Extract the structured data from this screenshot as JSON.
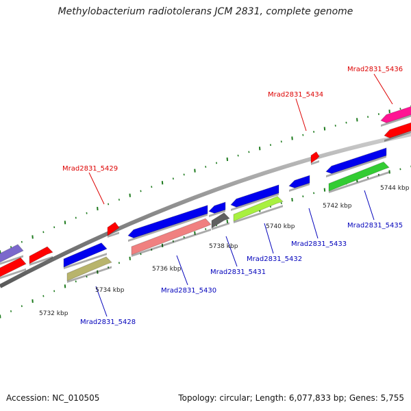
{
  "title": "Methylobacterium radiotolerans JCM 2831, complete genome",
  "footer": {
    "accession": "Accession: NC_010505",
    "topology": "Topology: circular; Length: 6,077,833 bp; Genes: 5,755"
  },
  "colors": {
    "backbone": "#8c8c8c",
    "tick": "#1e7b1e",
    "label_top": "#dd0000",
    "label_bottom": "#0000bb"
  },
  "scale_ticks": [
    "5732 kbp",
    "5734 kbp",
    "5736 kbp",
    "5738 kbp",
    "5740 kbp",
    "5742 kbp",
    "5744 kbp"
  ],
  "genes": [
    {
      "name": "",
      "color": "#7b68cc"
    },
    {
      "name": "",
      "color": "#ff0000"
    },
    {
      "name": "",
      "color": "#ff0000"
    },
    {
      "name": "Mrad2831_5428",
      "color": "#0000ee"
    },
    {
      "name": "Mrad2831_5428",
      "color": "#b8b46c"
    },
    {
      "name": "Mrad2831_5429",
      "color": "#ff0000"
    },
    {
      "name": "Mrad2831_5430",
      "color": "#0000ee"
    },
    {
      "name": "Mrad2831_5430",
      "color": "#f08080"
    },
    {
      "name": "Mrad2831_5431",
      "color": "#0000ee"
    },
    {
      "name": "Mrad2831_5431",
      "color": "#606060"
    },
    {
      "name": "Mrad2831_5432",
      "color": "#0000ee"
    },
    {
      "name": "Mrad2831_5432",
      "color": "#a8f040"
    },
    {
      "name": "Mrad2831_5433",
      "color": "#0000ee"
    },
    {
      "name": "Mrad2831_5434",
      "color": "#ff0000"
    },
    {
      "name": "Mrad2831_5435",
      "color": "#0000ee"
    },
    {
      "name": "Mrad2831_5435",
      "color": "#33cc33"
    },
    {
      "name": "Mrad2831_5436",
      "color": "#ff1493"
    },
    {
      "name": "Mrad2831_5436",
      "color": "#ff0000"
    }
  ],
  "labels": [
    {
      "text": "Mrad2831_5429",
      "strand": "top"
    },
    {
      "text": "Mrad2831_5434",
      "strand": "top"
    },
    {
      "text": "Mrad2831_5436",
      "strand": "top"
    },
    {
      "text": "Mrad2831_5428",
      "strand": "bottom"
    },
    {
      "text": "Mrad2831_5430",
      "strand": "bottom"
    },
    {
      "text": "Mrad2831_5431",
      "strand": "bottom"
    },
    {
      "text": "Mrad2831_5432",
      "strand": "bottom"
    },
    {
      "text": "Mrad2831_5433",
      "strand": "bottom"
    },
    {
      "text": "Mrad2831_5435",
      "strand": "bottom"
    }
  ]
}
